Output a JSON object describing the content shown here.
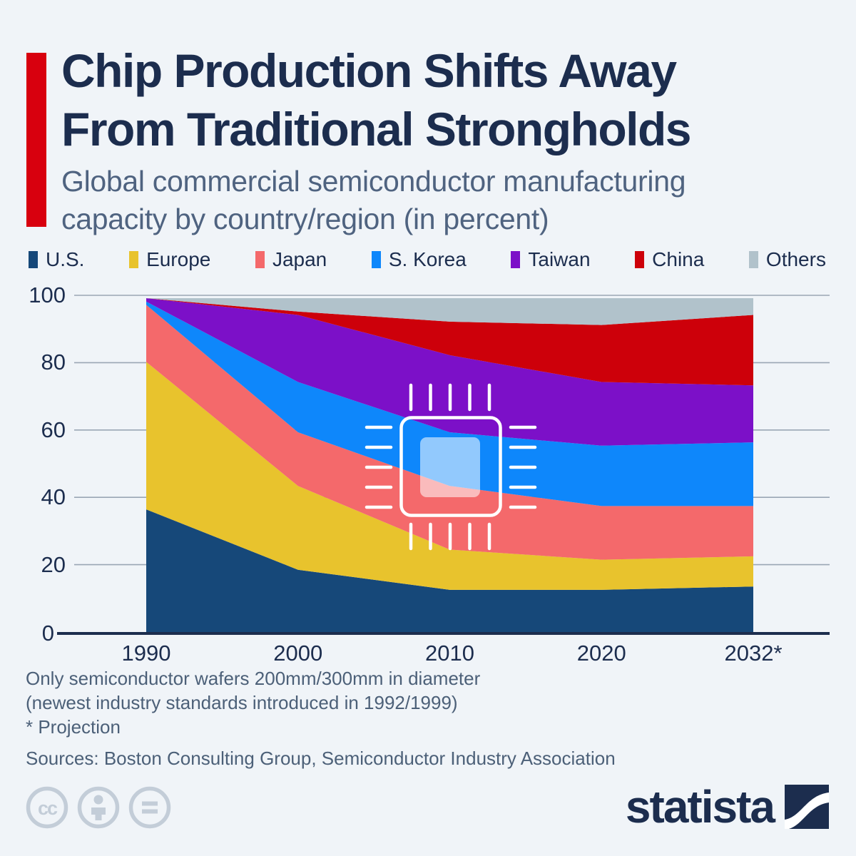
{
  "infographic": {
    "title_line1": "Chip Production Shifts Away",
    "title_line2": "From Traditional Strongholds",
    "subtitle_line1": "Global commercial semiconductor manufacturing",
    "subtitle_line2": "capacity by country/region (in percent)",
    "accent_color": "#d8000e",
    "background_color": "#f0f4f8"
  },
  "chart_data": {
    "type": "area",
    "stacked": true,
    "unit": "percent",
    "title": "Global commercial semiconductor manufacturing capacity by country/region (in percent)",
    "categories": [
      "1990",
      "2000",
      "2010",
      "2020",
      "2032*"
    ],
    "series": [
      {
        "name": "U.S.",
        "color": "#164879",
        "values": [
          37,
          19,
          13,
          13,
          14
        ]
      },
      {
        "name": "Europe",
        "color": "#e8c32d",
        "values": [
          44,
          25,
          12,
          9,
          9
        ]
      },
      {
        "name": "Japan",
        "color": "#f4696b",
        "values": [
          17,
          16,
          19,
          16,
          15
        ]
      },
      {
        "name": "S. Korea",
        "color": "#0e87fb",
        "values": [
          1,
          15,
          16,
          18,
          19
        ]
      },
      {
        "name": "Taiwan",
        "color": "#7c10c8",
        "values": [
          1,
          20,
          23,
          19,
          17
        ]
      },
      {
        "name": "China",
        "color": "#cd000a",
        "values": [
          0,
          1,
          10,
          17,
          21
        ]
      },
      {
        "name": "Others",
        "color": "#b1c2cb",
        "values": [
          0,
          4,
          7,
          8,
          5
        ]
      }
    ],
    "yticks": [
      0,
      20,
      40,
      60,
      80,
      100
    ],
    "ylim": [
      0,
      100
    ],
    "grid": true,
    "legend_position": "top",
    "xlabel": "",
    "ylabel": ""
  },
  "footnotes": {
    "note1": "Only semiconductor wafers 200mm/300mm in diameter",
    "note2": "(newest industry standards introduced in 1992/1999)",
    "note3": "* Projection",
    "sources": "Sources: Boston Consulting Group, Semiconductor Industry Association"
  },
  "branding": {
    "logo_text": "statista",
    "license": {
      "cc_glyph": "cc",
      "icons": [
        "cc-icon",
        "by-person-icon",
        "nd-equals-icon"
      ]
    }
  },
  "decorations": {
    "chip_icon": "microchip-icon"
  }
}
